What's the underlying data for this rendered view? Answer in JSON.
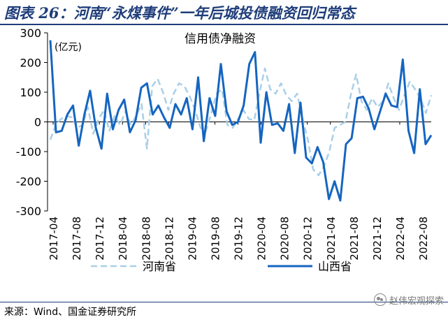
{
  "header": {
    "title": "图表 26：河南“永煤事件”一年后城投债融资回归常态"
  },
  "footer": {
    "source": "来源：Wind、国金证券研究所",
    "watermark": "赵伟宏观探索"
  },
  "colors": {
    "henan": "#a9cfe8",
    "shanxi": "#1565c0",
    "axis": "#000000",
    "title": "#1f3d7a"
  },
  "chart_data": {
    "type": "line",
    "title": "信用债净融资",
    "ylabel": "(亿元)",
    "ylim": [
      -300,
      300
    ],
    "yticks": [
      300,
      200,
      100,
      0,
      -100,
      -200,
      -300
    ],
    "xtick_labels": [
      "2017-04",
      "2017-08",
      "2017-12",
      "2018-04",
      "2018-08",
      "2018-12",
      "2019-04",
      "2019-08",
      "2019-12",
      "2020-04",
      "2020-08",
      "2020-12",
      "2021-04",
      "2021-08",
      "2021-12",
      "2022-04",
      "2022-08"
    ],
    "series": [
      {
        "name": "河南省",
        "style": "dashed",
        "values": [
          -60,
          -10,
          10,
          20,
          15,
          -20,
          -10,
          50,
          -40,
          10,
          40,
          -30,
          20,
          -10,
          35,
          -10,
          20,
          60,
          -90,
          120,
          145,
          100,
          40,
          95,
          130,
          120,
          85,
          40,
          -20,
          -30,
          30,
          95,
          110,
          -10,
          -20,
          10,
          40,
          10,
          5,
          100,
          180,
          110,
          95,
          130,
          90,
          70,
          95,
          10,
          -60,
          -160,
          -180,
          -150,
          -100,
          -20,
          -10,
          0,
          90,
          160,
          70,
          40,
          80,
          50,
          70,
          130,
          80,
          40,
          90,
          135,
          110,
          80,
          30,
          90
        ]
      },
      {
        "name": "山西省",
        "style": "solid",
        "values": [
          275,
          -35,
          -30,
          25,
          55,
          -80,
          25,
          105,
          -20,
          -90,
          95,
          -25,
          40,
          75,
          -35,
          5,
          115,
          130,
          25,
          55,
          15,
          -20,
          60,
          25,
          80,
          -25,
          150,
          -65,
          80,
          20,
          195,
          35,
          -10,
          0,
          55,
          195,
          235,
          -70,
          100,
          -10,
          -5,
          -30,
          60,
          -105,
          65,
          -120,
          -140,
          -85,
          -135,
          -260,
          -200,
          -265,
          -75,
          -55,
          80,
          85,
          45,
          -25,
          35,
          95,
          55,
          50,
          210,
          -30,
          -105,
          110,
          -75,
          -45
        ]
      }
    ]
  }
}
